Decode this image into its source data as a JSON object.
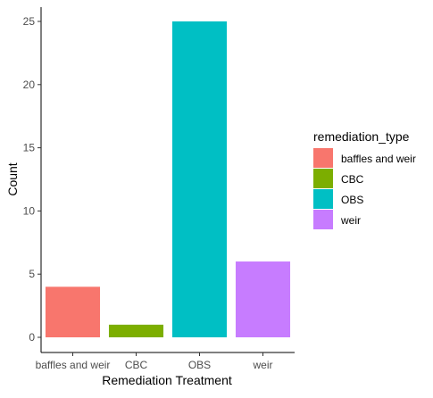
{
  "chart_data": {
    "type": "bar",
    "categories": [
      "baffles and weir",
      "CBC",
      "OBS",
      "weir"
    ],
    "values": [
      4,
      1,
      25,
      6
    ],
    "colors": [
      "#F8766D",
      "#7CAE00",
      "#00BFC4",
      "#C77CFF"
    ],
    "xlabel": "Remediation Treatment",
    "ylabel": "Count",
    "ylim": [
      0,
      25
    ],
    "yticks": [
      0,
      5,
      10,
      15,
      20,
      25
    ],
    "grid": false,
    "legend": {
      "title": "remediation_type",
      "placement": "right",
      "entries": [
        "baffles and weir",
        "CBC",
        "OBS",
        "weir"
      ]
    }
  }
}
